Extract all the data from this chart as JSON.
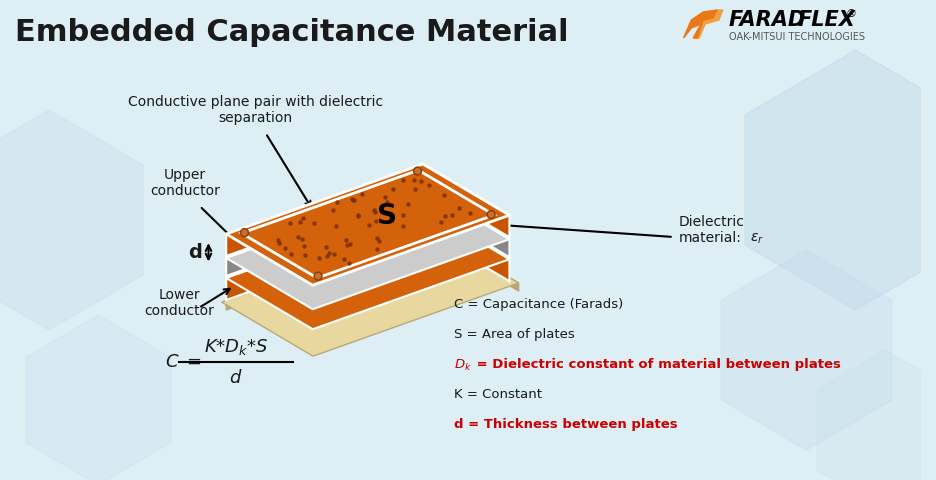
{
  "title": "Embedded Capacitance Material",
  "title_fontsize": 22,
  "title_color": "#1a1a1a",
  "bg_color": "#ddeef5",
  "text_color": "#1a1a1a",
  "red_color": "#cc0000",
  "logo_text_sub": "OAK-MITSUI TECHNOLOGIES",
  "label_upper": "Upper\nconductor",
  "label_lower": "Lower\nconductor",
  "label_d": "d",
  "label_S": "S",
  "label_dielectric": "Dielectric\nmaterial:",
  "label_conductive": "Conductive plane pair with dielectric\nseparation",
  "eq1": "C = Capacitance (Farads)",
  "eq2": "S = Area of plates",
  "eq3_red": "Dk = Dielectric constant of material between plates",
  "eq4": "K = Constant",
  "eq5_red": "d = Thickness between plates",
  "orange_dark": "#c85500",
  "orange_mid": "#d4620a",
  "orange_light": "#e07030",
  "gray_dark": "#888888",
  "gray_mid": "#aaaaaa",
  "gray_light": "#cccccc",
  "cream_dark": "#b8a878",
  "cream_light": "#e8d8a0",
  "white": "#ffffff"
}
